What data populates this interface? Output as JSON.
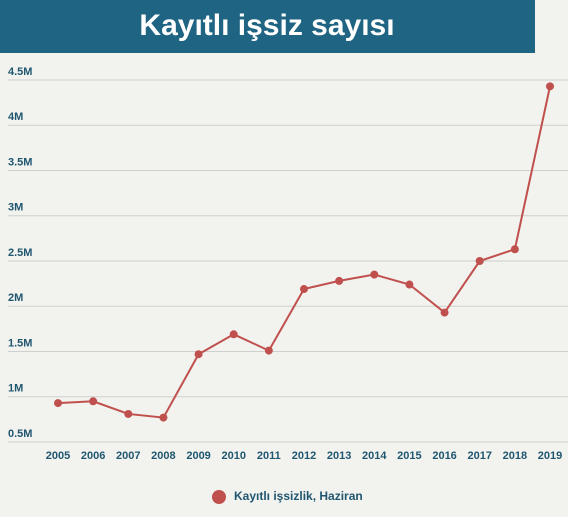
{
  "chart_data": {
    "type": "line",
    "title": "Kayıtlı işsiz sayısı",
    "x": [
      "2005",
      "2006",
      "2007",
      "2008",
      "2009",
      "2010",
      "2011",
      "2012",
      "2013",
      "2014",
      "2015",
      "2016",
      "2017",
      "2018",
      "2019"
    ],
    "series": [
      {
        "name": "Kayıtlı işsizlik, Haziran",
        "color": "#c0504d",
        "values": [
          0.93,
          0.95,
          0.81,
          0.77,
          1.47,
          1.69,
          1.51,
          2.19,
          2.28,
          2.35,
          2.24,
          1.93,
          2.5,
          2.63,
          4.43
        ]
      }
    ],
    "ylim": [
      0.5,
      4.5
    ],
    "yticks": [
      {
        "value": 0.5,
        "label": "0.5M"
      },
      {
        "value": 1,
        "label": "1M"
      },
      {
        "value": 1.5,
        "label": "1.5M"
      },
      {
        "value": 2,
        "label": "2M"
      },
      {
        "value": 2.5,
        "label": "2.5M"
      },
      {
        "value": 3,
        "label": "3M"
      },
      {
        "value": 3.5,
        "label": "3.5M"
      },
      {
        "value": 4,
        "label": "4M"
      },
      {
        "value": 4.5,
        "label": "4.5M"
      }
    ],
    "grid": true
  }
}
